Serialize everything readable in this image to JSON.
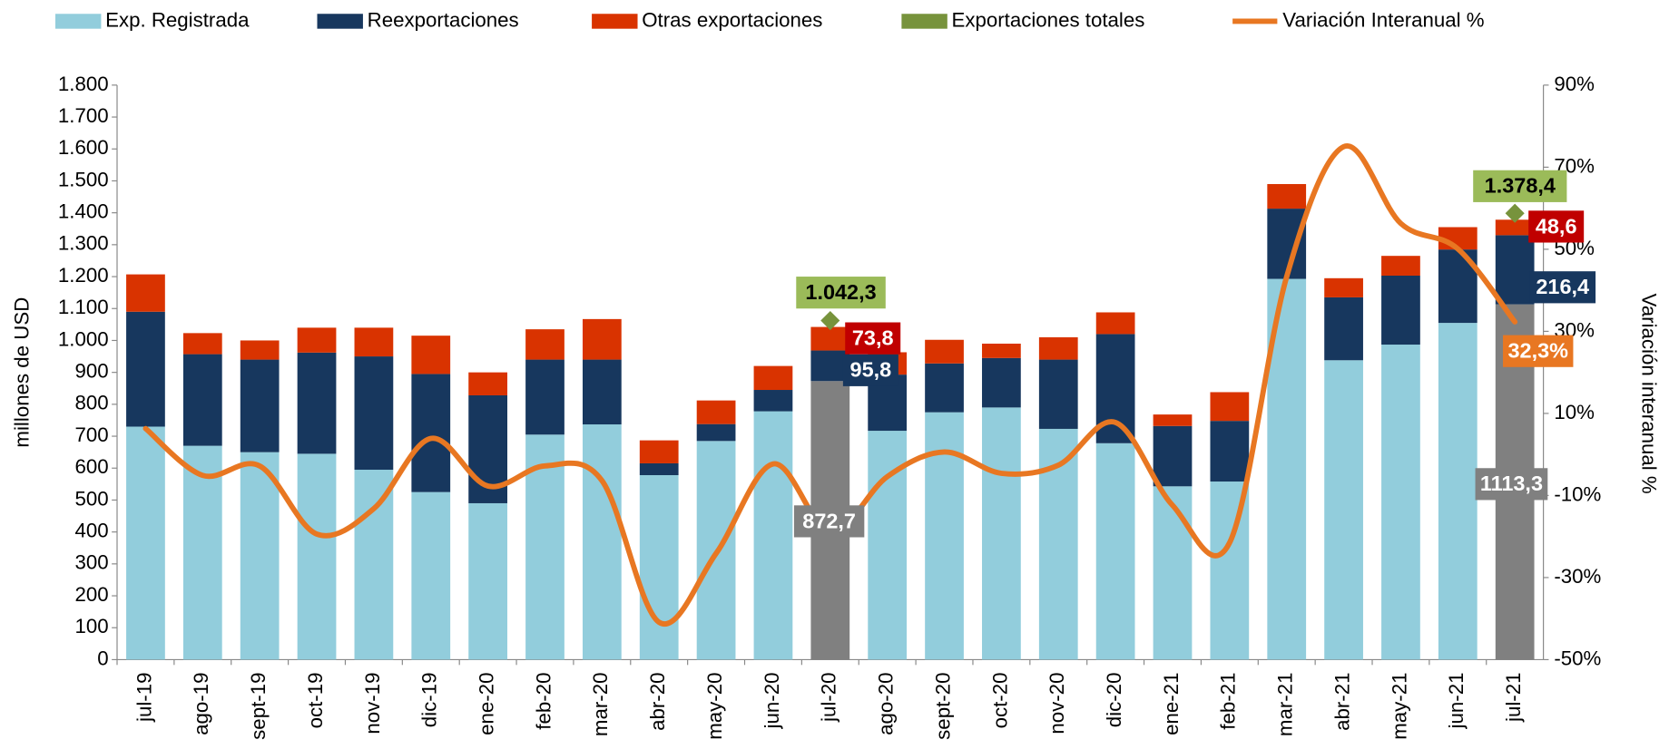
{
  "chart_data": {
    "type": "bar",
    "stacked": true,
    "categories": [
      "jul-19",
      "ago-19",
      "sept-19",
      "oct-19",
      "nov-19",
      "dic-19",
      "ene-20",
      "feb-20",
      "mar-20",
      "abr-20",
      "may-20",
      "jun-20",
      "jul-20",
      "ago-20",
      "sept-20",
      "oct-20",
      "nov-20",
      "dic-20",
      "ene-21",
      "feb-21",
      "mar-21",
      "abr-21",
      "may-21",
      "jun-21",
      "jul-21"
    ],
    "ylabel": "millones de  USD",
    "y2label": "Variación  interanual %",
    "ylim": [
      0,
      1800
    ],
    "yticks": [
      0,
      100,
      200,
      300,
      400,
      500,
      600,
      700,
      800,
      900,
      {
        "value": 1000,
        "label": "1.000"
      },
      {
        "value": 1100,
        "label": "1.100"
      },
      {
        "value": 1200,
        "label": "1.200"
      },
      {
        "value": 1300,
        "label": "1.300"
      },
      {
        "value": 1400,
        "label": "1.400"
      },
      {
        "value": 1500,
        "label": "1.500"
      },
      {
        "value": 1600,
        "label": "1.600"
      },
      {
        "value": 1700,
        "label": "1.700"
      },
      {
        "value": 1800,
        "label": "1.800"
      }
    ],
    "y2lim": [
      -50,
      90
    ],
    "y2ticks": [
      {
        "value": -50,
        "label": "-50%"
      },
      {
        "value": -30,
        "label": "-30%"
      },
      {
        "value": -10,
        "label": "-10%"
      },
      {
        "value": 10,
        "label": "10%"
      },
      {
        "value": 30,
        "label": "30%"
      },
      {
        "value": 50,
        "label": "50%"
      },
      {
        "value": 70,
        "label": "70%"
      },
      {
        "value": 90,
        "label": "90%"
      }
    ],
    "legend": "top",
    "series": [
      {
        "name": "Exp. Registrada",
        "type": "bar",
        "color": "#92CDDC",
        "colors": [
          "#92CDDC",
          "#92CDDC",
          "#92CDDC",
          "#92CDDC",
          "#92CDDC",
          "#92CDDC",
          "#92CDDC",
          "#92CDDC",
          "#92CDDC",
          "#92CDDC",
          "#92CDDC",
          "#92CDDC",
          "#808080",
          "#92CDDC",
          "#92CDDC",
          "#92CDDC",
          "#92CDDC",
          "#92CDDC",
          "#92CDDC",
          "#92CDDC",
          "#92CDDC",
          "#92CDDC",
          "#92CDDC",
          "#92CDDC",
          "#808080"
        ],
        "values": [
          730,
          670,
          650,
          645,
          595,
          525,
          490,
          705,
          737,
          578,
          685,
          778,
          872.7,
          717,
          775,
          790,
          723,
          678,
          543,
          558,
          1193,
          938,
          987,
          1055,
          1113.3
        ],
        "value_labels": [
          null,
          null,
          null,
          null,
          null,
          null,
          null,
          null,
          null,
          null,
          null,
          null,
          "872,7",
          null,
          null,
          null,
          null,
          null,
          null,
          null,
          null,
          null,
          null,
          null,
          "1113,3"
        ]
      },
      {
        "name": "Reexportaciones",
        "type": "bar",
        "color": "#17375E",
        "values": [
          360,
          287,
          290,
          317,
          355,
          370,
          338,
          235,
          203,
          37,
          53,
          67,
          95.8,
          176,
          153,
          155,
          217,
          342,
          189,
          190,
          220,
          197,
          216,
          230,
          216.4
        ],
        "value_labels": [
          null,
          null,
          null,
          null,
          null,
          null,
          null,
          null,
          null,
          null,
          null,
          null,
          "95,8",
          null,
          null,
          null,
          null,
          null,
          null,
          null,
          null,
          null,
          null,
          null,
          "216,4"
        ]
      },
      {
        "name": "Otras exportaciones",
        "type": "bar",
        "color": "#D93300",
        "label_color": "#C00000",
        "values": [
          117,
          66,
          60,
          78,
          90,
          120,
          72,
          95,
          127,
          72,
          74,
          75,
          73.8,
          70,
          74,
          45,
          70,
          68,
          36,
          90,
          77,
          60,
          62,
          70,
          48.6
        ],
        "value_labels": [
          null,
          null,
          null,
          null,
          null,
          null,
          null,
          null,
          null,
          null,
          null,
          null,
          "73,8",
          null,
          null,
          null,
          null,
          null,
          null,
          null,
          null,
          null,
          null,
          null,
          "48,6"
        ]
      },
      {
        "name": "Exportaciones  totales",
        "type": "marker",
        "color": "#77933C",
        "label_color": "#9BBB59",
        "values": [
          null,
          null,
          null,
          null,
          null,
          null,
          null,
          null,
          null,
          null,
          null,
          null,
          1042.3,
          null,
          null,
          null,
          null,
          null,
          null,
          null,
          null,
          null,
          null,
          null,
          1378.4
        ],
        "value_labels": [
          null,
          null,
          null,
          null,
          null,
          null,
          null,
          null,
          null,
          null,
          null,
          null,
          "1.042,3",
          null,
          null,
          null,
          null,
          null,
          null,
          null,
          null,
          null,
          null,
          null,
          "1.378,4"
        ]
      },
      {
        "name": "Variación Interanual %",
        "type": "line",
        "axis": "y2",
        "color": "#E87722",
        "values": [
          6.3,
          -5.1,
          -2.8,
          -19.4,
          -13.2,
          3.9,
          -7.7,
          -2.8,
          -6.4,
          -40.9,
          -24.1,
          -2.3,
          -18.9,
          -5.4,
          0.6,
          -4.6,
          -2.6,
          7.8,
          -12.4,
          -21.5,
          43.3,
          75,
          56.3,
          50.1,
          32.3
        ],
        "value_labels": [
          null,
          null,
          null,
          null,
          null,
          null,
          null,
          null,
          null,
          null,
          null,
          null,
          null,
          null,
          null,
          null,
          null,
          null,
          null,
          null,
          null,
          null,
          null,
          null,
          "32,3%"
        ]
      }
    ]
  }
}
